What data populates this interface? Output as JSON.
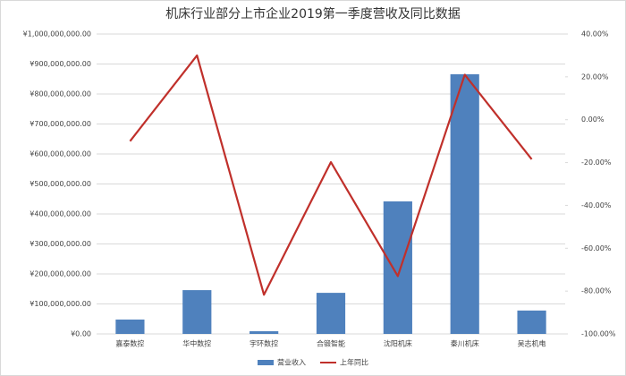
{
  "chart_data": {
    "type": "bar-line",
    "title": "机床行业部分上市企业2019第一季度营收及同比数据",
    "categories": [
      "嘉泰数控",
      "华中数控",
      "宇环数控",
      "合锻智能",
      "沈阳机床",
      "秦川机床",
      "吴志机电"
    ],
    "series": [
      {
        "name": "营业收入",
        "type": "bar",
        "color": "#4f81bd",
        "values": [
          48000000,
          146000000,
          9000000,
          137000000,
          442000000,
          866000000,
          78000000
        ]
      },
      {
        "name": "上年同比",
        "type": "line",
        "axis": "y2",
        "color": "#c0302b",
        "values": [
          -10,
          30,
          -81.7,
          -19.8,
          -73,
          21,
          -18.5
        ]
      }
    ],
    "ylim": [
      0,
      1000000000
    ],
    "yticks": [
      {
        "value": 0,
        "label": "¥0.00"
      },
      {
        "value": 100000000,
        "label": "¥100,000,000.00"
      },
      {
        "value": 200000000,
        "label": "¥200,000,000.00"
      },
      {
        "value": 300000000,
        "label": "¥300,000,000.00"
      },
      {
        "value": 400000000,
        "label": "¥400,000,000.00"
      },
      {
        "value": 500000000,
        "label": "¥500,000,000.00"
      },
      {
        "value": 600000000,
        "label": "¥600,000,000.00"
      },
      {
        "value": 700000000,
        "label": "¥700,000,000.00"
      },
      {
        "value": 800000000,
        "label": "¥800,000,000.00"
      },
      {
        "value": 900000000,
        "label": "¥900,000,000.00"
      },
      {
        "value": 1000000000,
        "label": "¥1,000,000,000.00"
      }
    ],
    "y2lim": [
      -100,
      40
    ],
    "y2ticks": [
      {
        "value": -100,
        "label": "-100.00%"
      },
      {
        "value": -80,
        "label": "-80.00%"
      },
      {
        "value": -60,
        "label": "-60.00%"
      },
      {
        "value": -40,
        "label": "-40.00%"
      },
      {
        "value": -20,
        "label": "-20.00%"
      },
      {
        "value": 0,
        "label": "0.00%"
      },
      {
        "value": 20,
        "label": "20.00%"
      },
      {
        "value": 40,
        "label": "40.00%"
      }
    ],
    "grid": true,
    "legend": "bottom"
  }
}
